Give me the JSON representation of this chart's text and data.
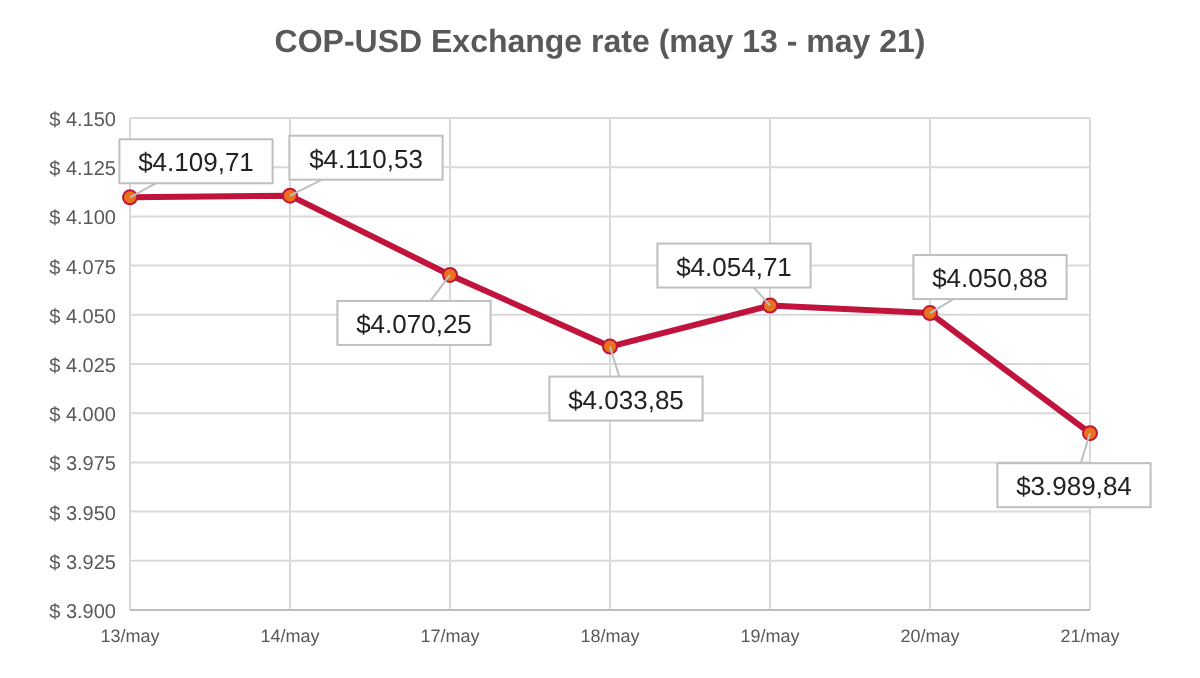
{
  "chart_data": {
    "type": "line",
    "title": "COP-USD Exchange rate (may 13 - may 21)",
    "categories": [
      "13/may",
      "14/may",
      "17/may",
      "18/may",
      "19/may",
      "20/may",
      "21/may"
    ],
    "series": [
      {
        "color": "#c0143c",
        "values": [
          4109.71,
          4110.53,
          4070.25,
          4033.85,
          4054.71,
          4050.88,
          3989.84
        ],
        "value_labels": [
          "$4.109,71",
          "$4.110,53",
          "$4.070,25",
          "$4.033,85",
          "$4.054,71",
          "$4.050,88",
          "$3.989,84"
        ]
      }
    ],
    "ylim": [
      3900,
      4150
    ],
    "yticks": [
      {
        "value": 3900,
        "label": "$ 3.900"
      },
      {
        "value": 3925,
        "label": "$ 3.925"
      },
      {
        "value": 3950,
        "label": "$ 3.950"
      },
      {
        "value": 3975,
        "label": "$ 3.975"
      },
      {
        "value": 4000,
        "label": "$ 4.000"
      },
      {
        "value": 4025,
        "label": "$ 4.025"
      },
      {
        "value": 4050,
        "label": "$ 4.050"
      },
      {
        "value": 4075,
        "label": "$ 4.075"
      },
      {
        "value": 4100,
        "label": "$ 4.100"
      },
      {
        "value": 4125,
        "label": "$ 4.125"
      },
      {
        "value": 4150,
        "label": "$ 4.150"
      }
    ],
    "grid": true,
    "marker": "circle",
    "line_style": "solid"
  }
}
